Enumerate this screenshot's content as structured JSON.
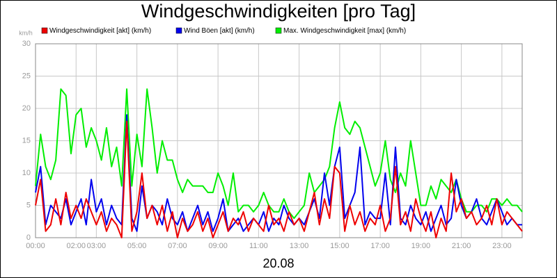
{
  "chart_data": {
    "type": "line",
    "title": "Windgeschwindigkeiten [pro Tag]",
    "y_unit": "km/h",
    "x_label": "20.08",
    "xlim": [
      0,
      24
    ],
    "xticks": [
      {
        "value": 0,
        "label": "00:00"
      },
      {
        "value": 2,
        "label": "02:00"
      },
      {
        "value": 3,
        "label": "03:00"
      },
      {
        "value": 5,
        "label": "05:00"
      },
      {
        "value": 7,
        "label": "07:00"
      },
      {
        "value": 9,
        "label": "09:00"
      },
      {
        "value": 11,
        "label": "11:00"
      },
      {
        "value": 13,
        "label": "13:00"
      },
      {
        "value": 15,
        "label": "15:00"
      },
      {
        "value": 17,
        "label": "17:00"
      },
      {
        "value": 19,
        "label": "19:00"
      },
      {
        "value": 21,
        "label": "21:00"
      },
      {
        "value": 23,
        "label": "23:00"
      }
    ],
    "ylim": [
      0,
      30
    ],
    "yticks": [
      0,
      5,
      10,
      15,
      20,
      25,
      30
    ],
    "grid": true,
    "x": [
      0,
      0.25,
      0.5,
      0.75,
      1,
      1.25,
      1.5,
      1.75,
      2,
      2.25,
      2.5,
      2.75,
      3,
      3.25,
      3.5,
      3.75,
      4,
      4.25,
      4.5,
      4.75,
      5,
      5.25,
      5.5,
      5.75,
      6,
      6.25,
      6.5,
      6.75,
      7,
      7.25,
      7.5,
      7.75,
      8,
      8.25,
      8.5,
      8.75,
      9,
      9.25,
      9.5,
      9.75,
      10,
      10.25,
      10.5,
      10.75,
      11,
      11.25,
      11.5,
      11.75,
      12,
      12.25,
      12.5,
      12.75,
      13,
      13.25,
      13.5,
      13.75,
      14,
      14.25,
      14.5,
      14.75,
      15,
      15.25,
      15.5,
      15.75,
      16,
      16.25,
      16.5,
      16.75,
      17,
      17.25,
      17.5,
      17.75,
      18,
      18.25,
      18.5,
      18.75,
      19,
      19.25,
      19.5,
      19.75,
      20,
      20.25,
      20.5,
      20.75,
      21,
      21.25,
      21.5,
      21.75,
      22,
      22.25,
      22.5,
      22.75,
      23,
      23.25,
      23.5,
      23.75,
      24
    ],
    "series": [
      {
        "name": "Windgeschwindigkeit [akt] (km/h)",
        "color": "#ee0000",
        "values": [
          5,
          9,
          1,
          2,
          6,
          2,
          7,
          3,
          5,
          3,
          6,
          4,
          2,
          4,
          1,
          3,
          2,
          0,
          18,
          1,
          4,
          10,
          3,
          5,
          2,
          5,
          1,
          4,
          0,
          3,
          1,
          2,
          4,
          1,
          3,
          0,
          2,
          4,
          1,
          3,
          2,
          4,
          1,
          3,
          2,
          1,
          5,
          2,
          3,
          1,
          4,
          2,
          3,
          1,
          4,
          7,
          2,
          6,
          3,
          11,
          10,
          1,
          5,
          2,
          4,
          1,
          3,
          2,
          5,
          1,
          3,
          11,
          2,
          4,
          1,
          6,
          3,
          1,
          4,
          0,
          3,
          1,
          10,
          4,
          6,
          3,
          4,
          2,
          3,
          5,
          2,
          6,
          2,
          4,
          3,
          2,
          1
        ]
      },
      {
        "name": "Wind Böen [akt] (km/h)",
        "color": "#0000ee",
        "values": [
          7,
          11,
          2,
          5,
          4,
          3,
          6,
          2,
          4,
          6,
          2,
          9,
          4,
          6,
          2,
          5,
          3,
          2,
          19,
          3,
          1,
          8,
          3,
          5,
          4,
          2,
          6,
          3,
          2,
          4,
          1,
          3,
          5,
          2,
          4,
          1,
          3,
          6,
          1,
          2,
          3,
          1,
          2,
          3,
          2,
          4,
          1,
          3,
          2,
          5,
          3,
          2,
          3,
          2,
          4,
          6,
          3,
          10,
          5,
          11,
          14,
          3,
          5,
          7,
          14,
          2,
          4,
          3,
          3,
          10,
          2,
          14,
          3,
          2,
          5,
          3,
          2,
          4,
          1,
          3,
          5,
          2,
          3,
          9,
          5,
          3,
          4,
          6,
          3,
          2,
          4,
          6,
          4,
          2,
          3,
          2,
          2
        ]
      },
      {
        "name": "Max. Windgeschwindigkeit [max] (km/h)",
        "color": "#00ee00",
        "values": [
          8,
          16,
          11,
          9,
          12,
          23,
          22,
          13,
          19,
          20,
          14,
          17,
          15,
          12,
          17,
          11,
          14,
          8,
          23,
          8,
          16,
          11,
          23,
          17,
          10,
          15,
          12,
          12,
          9,
          7,
          9,
          8,
          8,
          8,
          7,
          7,
          10,
          8,
          5,
          10,
          4,
          5,
          5,
          4,
          5,
          7,
          5,
          4,
          4,
          6,
          4,
          3,
          4,
          5,
          10,
          7,
          8,
          9,
          11,
          17,
          21,
          17,
          16,
          18,
          17,
          14,
          11,
          8,
          10,
          15,
          9,
          7,
          10,
          8,
          15,
          10,
          5,
          5,
          8,
          6,
          9,
          8,
          7,
          9,
          6,
          4,
          4,
          5,
          5,
          4,
          6,
          6,
          5,
          6,
          5,
          5,
          4
        ]
      }
    ]
  }
}
